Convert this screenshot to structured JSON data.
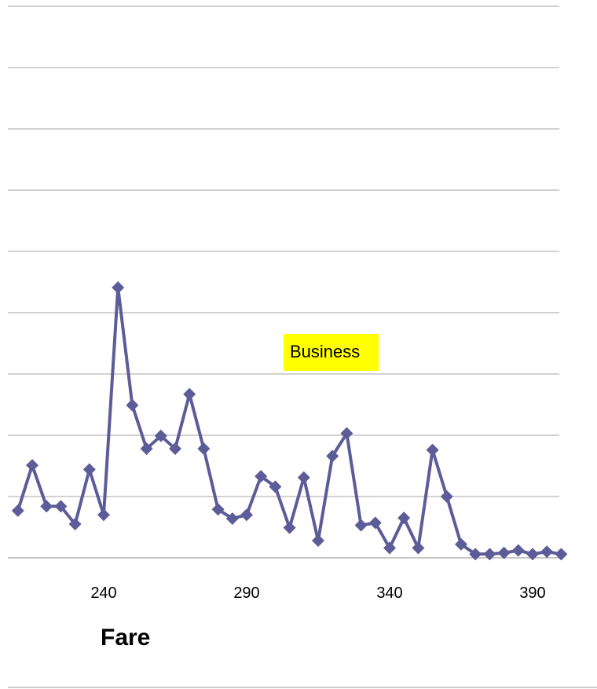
{
  "chart_data": {
    "type": "line",
    "xlabel": "Fare",
    "ylabel": "",
    "x_ticks": [
      240,
      290,
      340,
      390
    ],
    "xlim": [
      207,
      400
    ],
    "ylim": [
      0,
      9
    ],
    "grid": true,
    "annotation": {
      "text": "Business",
      "highlight": "#ffff00"
    },
    "series": [
      {
        "color": "#5c5c99",
        "marker": "diamond",
        "x": [
          210,
          215,
          220,
          225,
          230,
          235,
          240,
          245,
          250,
          255,
          260,
          265,
          270,
          275,
          280,
          285,
          290,
          295,
          300,
          305,
          310,
          315,
          320,
          325,
          330,
          335,
          340,
          345,
          350,
          355,
          360,
          365,
          370,
          375,
          380,
          385,
          390,
          395,
          400
        ],
        "y": [
          0.77,
          1.51,
          0.84,
          0.84,
          0.55,
          1.44,
          0.7,
          4.41,
          2.49,
          1.78,
          1.99,
          1.78,
          2.67,
          1.78,
          0.79,
          0.64,
          0.7,
          1.33,
          1.16,
          0.49,
          1.31,
          0.28,
          1.66,
          2.03,
          0.53,
          0.57,
          0.16,
          0.65,
          0.16,
          1.76,
          1.0,
          0.22,
          0.06,
          0.06,
          0.08,
          0.12,
          0.06,
          0.1,
          0.06
        ]
      }
    ]
  }
}
